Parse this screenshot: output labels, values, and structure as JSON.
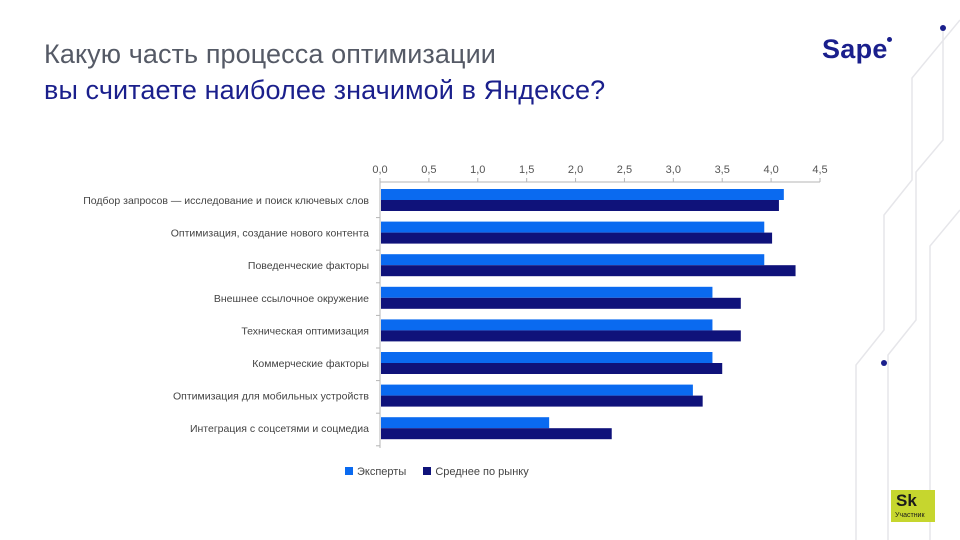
{
  "title": {
    "line1": "Какую часть процесса оптимизации",
    "line2": "вы считаете наиболее значимой в Яндексе?"
  },
  "logo": {
    "text": "Sape"
  },
  "badge": {
    "logo": "Sk",
    "caption": "Участник"
  },
  "colors": {
    "experts": "#0a6af0",
    "market": "#0f127a",
    "title_accent": "#1a1f8c",
    "badge": "#c6d62e"
  },
  "chart_data": {
    "type": "bar",
    "orientation": "horizontal",
    "categories": [
      "Подбор запросов — исследование и поиск ключевых слов",
      "Оптимизация, создание нового контента",
      "Поведенческие факторы",
      "Внешнее ссылочное окружение",
      "Техническая оптимизация",
      "Коммерческие факторы",
      "Оптимизация для мобильных устройств",
      "Интеграция с соцсетями и соцмедиа"
    ],
    "series": [
      {
        "name": "Эксперты",
        "color": "#0a6af0",
        "values": [
          4.13,
          3.93,
          3.93,
          3.4,
          3.4,
          3.4,
          3.2,
          1.73
        ]
      },
      {
        "name": "Среднее по рынку",
        "color": "#0f127a",
        "values": [
          4.08,
          4.01,
          4.25,
          3.69,
          3.69,
          3.5,
          3.3,
          2.37
        ]
      }
    ],
    "xlim": [
      0,
      4.5
    ],
    "xticks": [
      "0,0",
      "0,5",
      "1,0",
      "1,5",
      "2,0",
      "2,5",
      "3,0",
      "3,5",
      "4,0",
      "4,5"
    ],
    "axis_position": "top",
    "legend_position": "bottom",
    "grid": false
  }
}
